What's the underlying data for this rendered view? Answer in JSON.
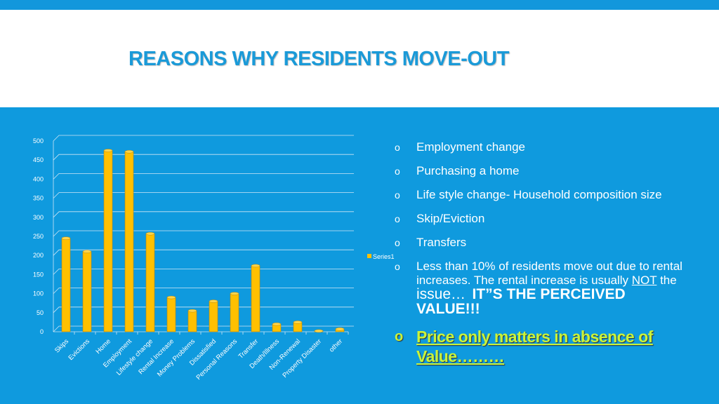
{
  "slide": {
    "title": "REASONS WHY RESIDENTS MOVE-OUT",
    "bullets": [
      "Employment change",
      "Purchasing a home",
      "Life style change- Household composition size",
      "Skip/Eviction",
      "Transfers"
    ],
    "bullet_marker": "o",
    "rental_note": {
      "part1": "Less than 10% of residents move out due to rental increases.  The rental increase is usually ",
      "emphasis": "NOT",
      "part2": " the",
      "part3": "issue…",
      "bold": "IT”S THE PERCEIVED VALUE!!!"
    },
    "highlight": "Price only matters in absence of Value………",
    "highlight_color": "#c9f33a"
  },
  "chart_data": {
    "type": "bar",
    "categories": [
      "Skips",
      "Evictions",
      "Home",
      "Employment",
      "Lifestyle change",
      "Rental Increase",
      "Money Problems",
      "Dissatisfied",
      "Personal Reasons",
      "Transfer",
      "Death/Illness",
      "Non-Renewal",
      "Property Disaster",
      "other"
    ],
    "series": [
      {
        "name": "Series1",
        "values": [
          245,
          210,
          475,
          472,
          257,
          90,
          55,
          80,
          100,
          173,
          20,
          25,
          2,
          7
        ]
      }
    ],
    "ylim": [
      0,
      500
    ],
    "yticks": [
      "0",
      "50",
      "100",
      "150",
      "200",
      "250",
      "300",
      "350",
      "400",
      "450",
      "500"
    ],
    "grid": true,
    "legend": "right",
    "bar_color": "#ffc000"
  }
}
